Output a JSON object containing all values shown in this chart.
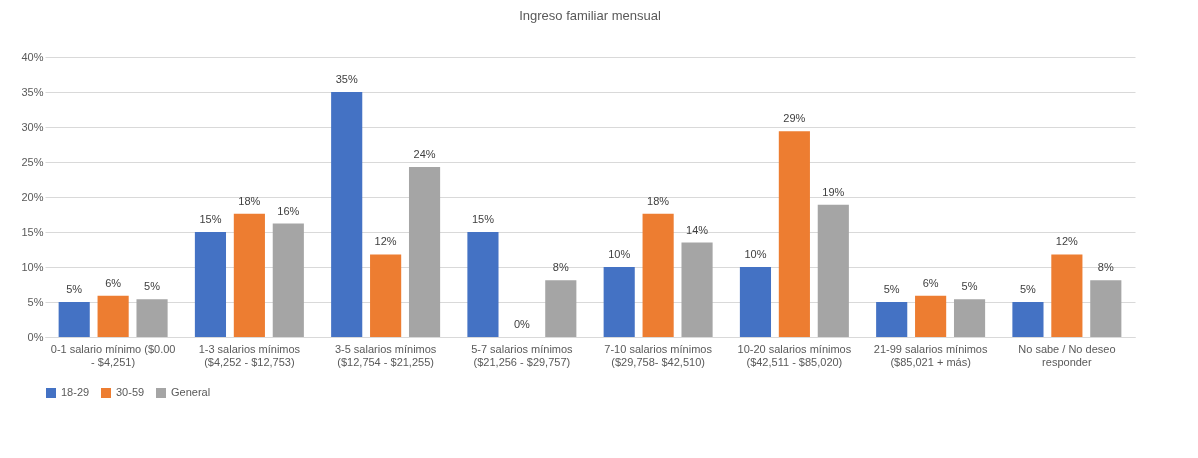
{
  "chart_data": {
    "type": "bar",
    "title": "Ingreso familiar mensual",
    "categories": [
      "0-1 salario mínimo ($0.00 - $4,251)",
      "1-3 salarios mínimos ($4,252 - $12,753)",
      "3-5 salarios mínimos ($12,754 - $21,255)",
      "5-7 salarios mínimos ($21,256 - $29,757)",
      "7-10 salarios mínimos ($29,758- $42,510)",
      "10-20 salarios mínimos ($42,511 - $85,020)",
      "21-99 salarios mínimos ($85,021 + más)",
      "No sabe / No deseo responder"
    ],
    "series": [
      {
        "name": "18-29",
        "color": "#4472c4",
        "values": [
          5,
          15,
          35,
          15,
          10,
          10,
          5,
          5
        ],
        "value_labels": [
          "5%",
          "15%",
          "35%",
          "15%",
          "10%",
          "10%",
          "5%",
          "5%"
        ]
      },
      {
        "name": "30-59",
        "color": "#ed7d31",
        "values": [
          5.9,
          17.6,
          11.8,
          0,
          17.6,
          29.4,
          5.9,
          11.8
        ],
        "value_labels": [
          "6%",
          "18%",
          "12%",
          "0%",
          "18%",
          "29%",
          "6%",
          "12%"
        ]
      },
      {
        "name": "General",
        "color": "#a5a5a5",
        "values": [
          5.4,
          16.2,
          24.3,
          8.1,
          13.5,
          18.9,
          5.4,
          8.1
        ],
        "value_labels": [
          "5%",
          "16%",
          "24%",
          "8%",
          "14%",
          "19%",
          "5%",
          "8%"
        ]
      }
    ],
    "ylim": [
      0,
      40
    ],
    "yticks": [
      {
        "value": 0,
        "label": "0%"
      },
      {
        "value": 5,
        "label": "5%"
      },
      {
        "value": 10,
        "label": "10%"
      },
      {
        "value": 15,
        "label": "15%"
      },
      {
        "value": 20,
        "label": "20%"
      },
      {
        "value": 25,
        "label": "25%"
      },
      {
        "value": 30,
        "label": "30%"
      },
      {
        "value": 35,
        "label": "35%"
      },
      {
        "value": 40,
        "label": "40%"
      }
    ],
    "grid": "y",
    "legend": "bottom"
  }
}
